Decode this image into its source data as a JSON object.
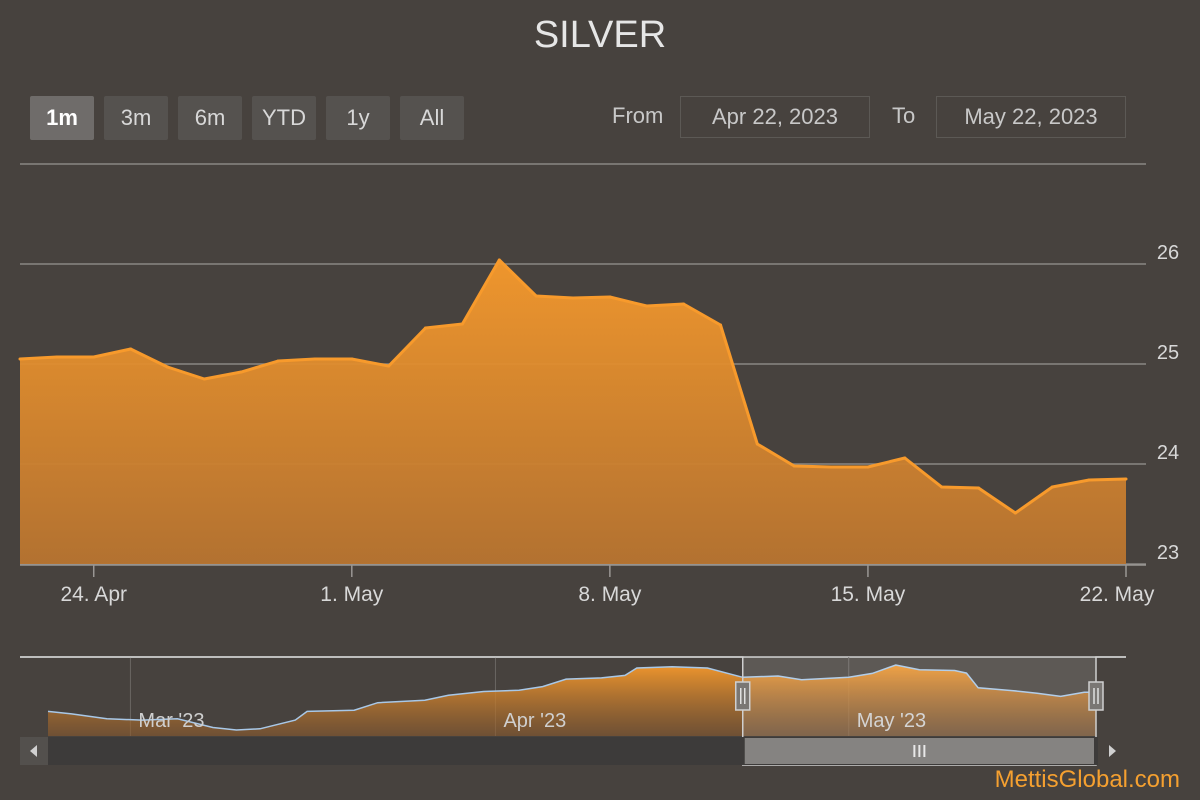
{
  "title": "SILVER",
  "range_selector": {
    "buttons": [
      "1m",
      "3m",
      "6m",
      "YTD",
      "1y",
      "All"
    ],
    "selected": "1m",
    "from_label": "From",
    "from_value": "Apr 22, 2023",
    "to_label": "To",
    "to_value": "May 22, 2023"
  },
  "brand": "MettisGlobal.com",
  "colors": {
    "background": "#47423e",
    "series_line": "#f79a2c",
    "series_fill_top": "#f79a2c",
    "series_fill_bottom": "#b87430",
    "navigator_line": "#a8c8e8",
    "brand": "#f5a030"
  },
  "chart_data": {
    "type": "area",
    "title": "SILVER",
    "xlabel": "",
    "ylabel": "",
    "x_start": "2023-04-22",
    "x_end": "2023-05-22",
    "x_ticks": [
      "24. Apr",
      "1. May",
      "8. May",
      "15. May",
      "22. May"
    ],
    "y_ticks": [
      23,
      24,
      25,
      26
    ],
    "ylim": [
      23,
      27
    ],
    "grid": true,
    "y_axis_position": "right",
    "series": [
      {
        "points": [
          [
            "2023-04-22",
            25.05
          ],
          [
            "2023-04-23",
            25.07
          ],
          [
            "2023-04-24",
            25.07
          ],
          [
            "2023-04-25",
            25.15
          ],
          [
            "2023-04-26",
            24.97
          ],
          [
            "2023-04-27",
            24.85
          ],
          [
            "2023-04-28",
            24.92
          ],
          [
            "2023-04-29",
            25.03
          ],
          [
            "2023-04-30",
            25.05
          ],
          [
            "2023-05-01",
            25.05
          ],
          [
            "2023-05-02",
            24.98
          ],
          [
            "2023-05-03",
            25.36
          ],
          [
            "2023-05-04",
            25.4
          ],
          [
            "2023-05-05",
            26.04
          ],
          [
            "2023-05-06",
            25.68
          ],
          [
            "2023-05-07",
            25.66
          ],
          [
            "2023-05-08",
            25.67
          ],
          [
            "2023-05-09",
            25.58
          ],
          [
            "2023-05-10",
            25.6
          ],
          [
            "2023-05-11",
            25.39
          ],
          [
            "2023-05-12",
            24.2
          ],
          [
            "2023-05-13",
            23.98
          ],
          [
            "2023-05-14",
            23.97
          ],
          [
            "2023-05-15",
            23.97
          ],
          [
            "2023-05-16",
            24.06
          ],
          [
            "2023-05-17",
            23.77
          ],
          [
            "2023-05-18",
            23.76
          ],
          [
            "2023-05-19",
            23.51
          ],
          [
            "2023-05-20",
            23.77
          ],
          [
            "2023-05-21",
            23.84
          ],
          [
            "2023-05-22",
            23.85
          ]
        ]
      }
    ],
    "navigator": {
      "x_start": "2023-02-22",
      "x_end": "2023-05-22",
      "labels": [
        "Mar '23",
        "Apr '23",
        "May '23"
      ],
      "selected_range": [
        "2023-04-22",
        "2023-05-22"
      ],
      "points": [
        [
          "2023-02-22",
          22.3
        ],
        [
          "2023-02-24",
          22.1
        ],
        [
          "2023-02-27",
          21.7
        ],
        [
          "2023-03-02",
          21.6
        ],
        [
          "2023-03-05",
          21.7
        ],
        [
          "2023-03-08",
          21.0
        ],
        [
          "2023-03-10",
          20.8
        ],
        [
          "2023-03-12",
          20.9
        ],
        [
          "2023-03-15",
          21.6
        ],
        [
          "2023-03-16",
          22.3
        ],
        [
          "2023-03-20",
          22.4
        ],
        [
          "2023-03-22",
          23.0
        ],
        [
          "2023-03-26",
          23.2
        ],
        [
          "2023-03-28",
          23.6
        ],
        [
          "2023-03-31",
          23.9
        ],
        [
          "2023-04-03",
          24.0
        ],
        [
          "2023-04-05",
          24.3
        ],
        [
          "2023-04-07",
          24.9
        ],
        [
          "2023-04-10",
          25.0
        ],
        [
          "2023-04-12",
          25.2
        ],
        [
          "2023-04-13",
          25.8
        ],
        [
          "2023-04-16",
          25.9
        ],
        [
          "2023-04-19",
          25.8
        ],
        [
          "2023-04-22",
          25.05
        ],
        [
          "2023-04-25",
          25.15
        ],
        [
          "2023-04-27",
          24.85
        ],
        [
          "2023-05-01",
          25.05
        ],
        [
          "2023-05-03",
          25.36
        ],
        [
          "2023-05-05",
          26.04
        ],
        [
          "2023-05-07",
          25.66
        ],
        [
          "2023-05-10",
          25.6
        ],
        [
          "2023-05-11",
          25.39
        ],
        [
          "2023-05-12",
          24.2
        ],
        [
          "2023-05-15",
          23.97
        ],
        [
          "2023-05-17",
          23.77
        ],
        [
          "2023-05-19",
          23.51
        ],
        [
          "2023-05-21",
          23.84
        ],
        [
          "2023-05-22",
          23.85
        ]
      ]
    }
  }
}
